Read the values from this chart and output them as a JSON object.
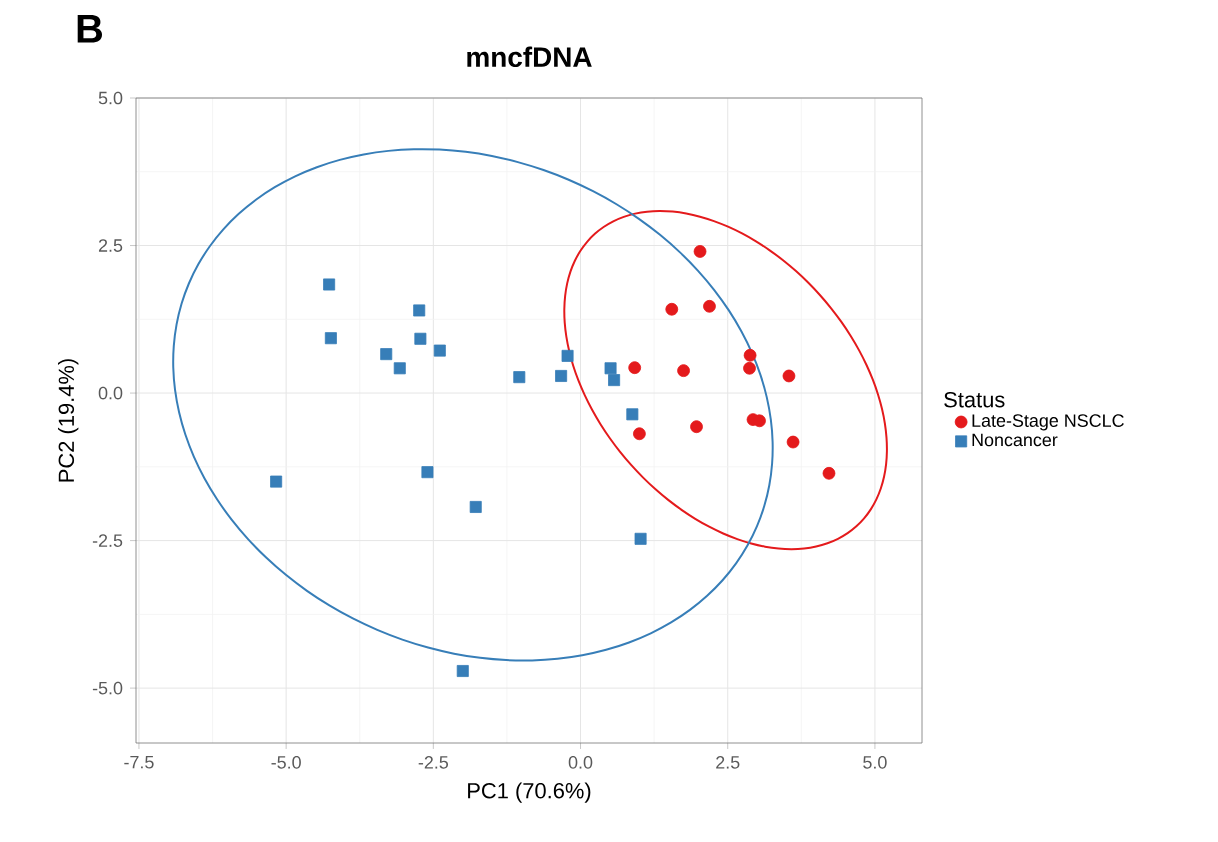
{
  "chart_data": {
    "type": "scatter",
    "title": "mncfDNA",
    "xlabel": "PC1 (70.6%)",
    "ylabel": "PC2 (19.4%)",
    "legend_title": "Status",
    "annotations": [
      "B"
    ],
    "xlim": [
      -7.55,
      5.8
    ],
    "ylim": [
      -5.93,
      5.0
    ],
    "xticks": [
      {
        "value": -7.5,
        "label": "-7.5"
      },
      {
        "value": -5,
        "label": "-5.0"
      },
      {
        "value": -2.5,
        "label": "-2.5"
      },
      {
        "value": 0,
        "label": "0.0"
      },
      {
        "value": 2.5,
        "label": "2.5"
      },
      {
        "value": 5,
        "label": "5.0"
      }
    ],
    "yticks": [
      {
        "value": -5,
        "label": "-5.0"
      },
      {
        "value": -2.5,
        "label": "-2.5"
      },
      {
        "value": 0,
        "label": "0.0"
      },
      {
        "value": 2.5,
        "label": "2.5"
      },
      {
        "value": 5,
        "label": "5.0"
      }
    ],
    "grid": true,
    "legend": "right",
    "series": [
      {
        "name": "Late-Stage NSCLC",
        "marker": "circle",
        "color": "#e41a1c",
        "x": [
          2.03,
          1.55,
          2.19,
          0.92,
          1.75,
          2.88,
          2.87,
          3.54,
          1.0,
          1.97,
          2.93,
          3.04,
          3.61,
          4.22
        ],
        "values": [
          2.4,
          1.42,
          1.47,
          0.43,
          0.38,
          0.64,
          0.42,
          0.29,
          -0.69,
          -0.57,
          -0.45,
          -0.47,
          -0.83,
          -1.36
        ]
      },
      {
        "name": "Noncancer",
        "marker": "square",
        "color": "#377eb8",
        "x": [
          -4.27,
          -4.24,
          -3.3,
          -3.07,
          -2.74,
          -2.72,
          -2.39,
          -1.04,
          -0.33,
          -0.22,
          0.51,
          0.57,
          -5.17,
          -2.6,
          -1.78,
          -2.0,
          0.88,
          1.02
        ],
        "values": [
          1.84,
          0.93,
          0.66,
          0.42,
          1.4,
          0.92,
          0.72,
          0.27,
          0.29,
          0.63,
          0.42,
          0.22,
          -1.5,
          -1.34,
          -1.93,
          -4.71,
          -0.36,
          -2.47
        ]
      }
    ]
  }
}
